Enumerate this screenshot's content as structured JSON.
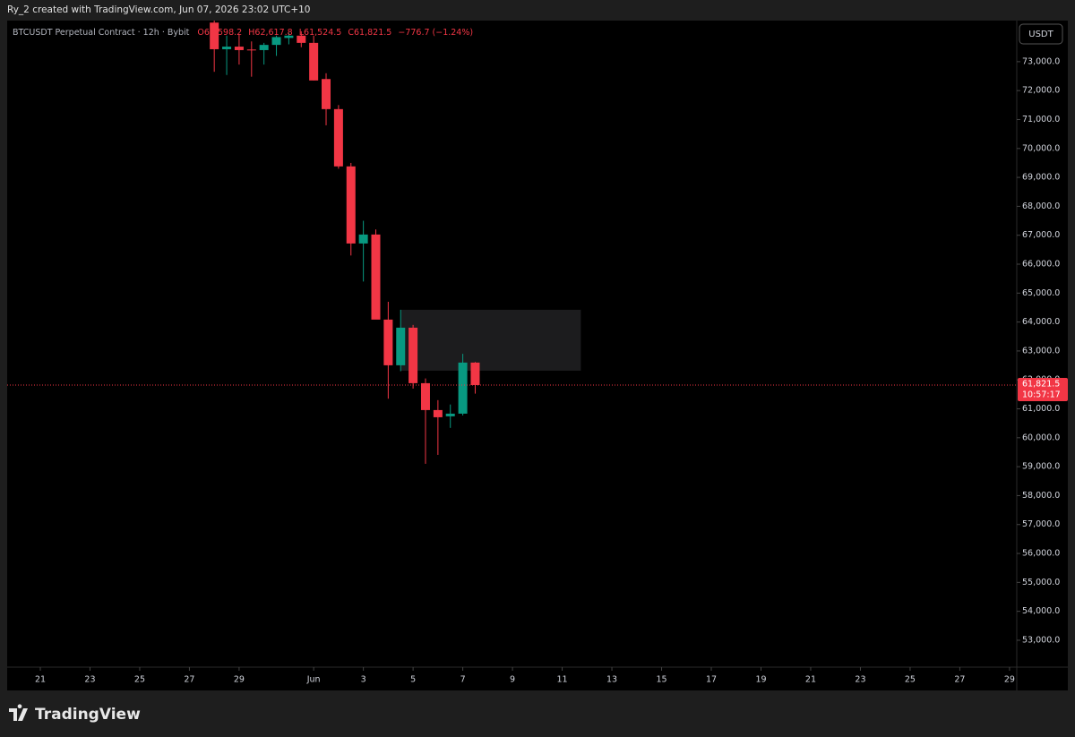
{
  "header": {
    "attribution": "Ry_2 created with TradingView.com, Jun 07, 2026 23:02 UTC+10",
    "logo": "TradingView"
  },
  "chart_data": {
    "type": "candlestick",
    "symbol": "BTCUSDT Perpetual Contract · 12h · Bybit",
    "ohlc_readout": {
      "open": "O62,598.2",
      "high": "H62,617.8",
      "low": "L61,524.5",
      "close": "C61,821.5",
      "change": "−776.7 (−1.24%)"
    },
    "currency": "USDT",
    "last_price_label": "61,821.5",
    "countdown": "10:57:17",
    "up_color": "#089981",
    "down_color": "#f23645",
    "x": [
      "2026-05-28T00:00",
      "2026-05-28T12:00",
      "2026-05-29T00:00",
      "2026-05-29T12:00",
      "2026-05-30T00:00",
      "2026-05-30T12:00",
      "2026-05-31T00:00",
      "2026-05-31T12:00",
      "2026-06-01T00:00",
      "2026-06-01T12:00",
      "2026-06-02T00:00",
      "2026-06-02T12:00",
      "2026-06-03T00:00",
      "2026-06-03T12:00",
      "2026-06-04T00:00",
      "2026-06-04T12:00",
      "2026-06-05T00:00",
      "2026-06-05T12:00",
      "2026-06-06T00:00",
      "2026-06-06T12:00",
      "2026-06-07T00:00",
      "2026-06-07T12:00"
    ],
    "open": [
      74350,
      73430,
      73520,
      73420,
      73400,
      73580,
      73820,
      73900,
      73650,
      72400,
      71360,
      69380,
      66715,
      67025,
      64084,
      62505,
      63805,
      61886,
      60957,
      60740,
      60833,
      62598.2
    ],
    "high": [
      74500,
      73900,
      73950,
      73700,
      73650,
      73900,
      74000,
      74050,
      73900,
      72600,
      71500,
      69500,
      67500,
      67200,
      64700,
      64424,
      63900,
      62050,
      61300,
      61150,
      62900,
      62617.8
    ],
    "low": [
      72650,
      72540,
      72900,
      72480,
      72900,
      73200,
      73600,
      73500,
      72350,
      70800,
      69300,
      66300,
      65400,
      64100,
      61350,
      62300,
      61700,
      59099,
      59408,
      60340,
      60770,
      61524.5
    ],
    "close": [
      73430,
      73520,
      73400,
      73400,
      73580,
      73850,
      73900,
      73650,
      72350,
      71360,
      69380,
      66715,
      67025,
      64084,
      62505,
      63805,
      61886,
      60957,
      60709,
      60833,
      62598.2,
      61821.5
    ],
    "rectangle": {
      "start": "2026-06-04T12:00",
      "end": "2026-06-11T18:00",
      "top": 64424,
      "bottom": 62319,
      "color": "#1c1c1e"
    },
    "xlim": [
      "2026-05-19T16:00",
      "2026-06-29T07:00"
    ],
    "xticks": [
      {
        "value": "2026-05-21T00:00",
        "label": "21"
      },
      {
        "value": "2026-05-23T00:00",
        "label": "23"
      },
      {
        "value": "2026-05-25T00:00",
        "label": "25"
      },
      {
        "value": "2026-05-27T00:00",
        "label": "27"
      },
      {
        "value": "2026-05-29T00:00",
        "label": "29"
      },
      {
        "value": "2026-06-01T00:00",
        "label": "Jun"
      },
      {
        "value": "2026-06-03T00:00",
        "label": "3"
      },
      {
        "value": "2026-06-05T00:00",
        "label": "5"
      },
      {
        "value": "2026-06-07T00:00",
        "label": "7"
      },
      {
        "value": "2026-06-09T00:00",
        "label": "9"
      },
      {
        "value": "2026-06-11T00:00",
        "label": "11"
      },
      {
        "value": "2026-06-13T00:00",
        "label": "13"
      },
      {
        "value": "2026-06-15T00:00",
        "label": "15"
      },
      {
        "value": "2026-06-17T00:00",
        "label": "17"
      },
      {
        "value": "2026-06-19T00:00",
        "label": "19"
      },
      {
        "value": "2026-06-21T00:00",
        "label": "21"
      },
      {
        "value": "2026-06-23T00:00",
        "label": "23"
      },
      {
        "value": "2026-06-25T00:00",
        "label": "25"
      },
      {
        "value": "2026-06-27T00:00",
        "label": "27"
      },
      {
        "value": "2026-06-29T00:00",
        "label": "29"
      }
    ],
    "ylim": [
      52070,
      74420
    ],
    "yticks": [
      {
        "value": 53000,
        "label": "53,000.0"
      },
      {
        "value": 54000,
        "label": "54,000.0"
      },
      {
        "value": 55000,
        "label": "55,000.0"
      },
      {
        "value": 56000,
        "label": "56,000.0"
      },
      {
        "value": 57000,
        "label": "57,000.0"
      },
      {
        "value": 58000,
        "label": "58,000.0"
      },
      {
        "value": 59000,
        "label": "59,000.0"
      },
      {
        "value": 60000,
        "label": "60,000.0"
      },
      {
        "value": 61000,
        "label": "61,000.0"
      },
      {
        "value": 62000,
        "label": "62,000.0"
      },
      {
        "value": 63000,
        "label": "63,000.0"
      },
      {
        "value": 64000,
        "label": "64,000.0"
      },
      {
        "value": 65000,
        "label": "65,000.0"
      },
      {
        "value": 66000,
        "label": "66,000.0"
      },
      {
        "value": 67000,
        "label": "67,000.0"
      },
      {
        "value": 68000,
        "label": "68,000.0"
      },
      {
        "value": 69000,
        "label": "69,000.0"
      },
      {
        "value": 70000,
        "label": "70,000.0"
      },
      {
        "value": 71000,
        "label": "71,000.0"
      },
      {
        "value": 72000,
        "label": "72,000.0"
      },
      {
        "value": 73000,
        "label": "73,000.0"
      }
    ]
  }
}
